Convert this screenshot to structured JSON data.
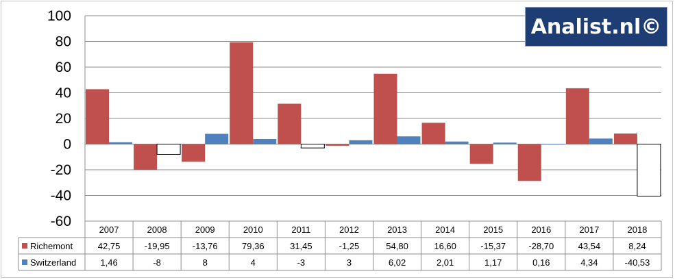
{
  "chart_data": {
    "type": "bar",
    "categories": [
      "2007",
      "2008",
      "2009",
      "2010",
      "2011",
      "2012",
      "2013",
      "2014",
      "2015",
      "2016",
      "2017",
      "2018"
    ],
    "series": [
      {
        "name": "Richemont",
        "values": [
          42.75,
          -19.95,
          -13.76,
          79.36,
          31.45,
          -1.25,
          54.8,
          16.6,
          -15.37,
          -28.7,
          43.54,
          8.24
        ],
        "labels": [
          "42,75",
          "-19,95",
          "-13,76",
          "79,36",
          "31,45",
          "-1,25",
          "54,80",
          "16,60",
          "-15,37",
          "-28,70",
          "43,54",
          "8,24"
        ],
        "color": "#c0504d"
      },
      {
        "name": "Switzerland",
        "values": [
          1.46,
          -8,
          8,
          4,
          -3,
          3,
          6.02,
          2.01,
          1.17,
          0.16,
          4.34,
          -40.53
        ],
        "labels": [
          "1,46",
          "-8",
          "8",
          "4",
          "-3",
          "3",
          "6,02",
          "2,01",
          "1,17",
          "0,16",
          "4,34",
          "-40,53"
        ],
        "color": "#4f81bd",
        "negative_fill": "#ffffff"
      }
    ],
    "ylim": [
      -60,
      100
    ],
    "yticks": [
      "100",
      "80",
      "60",
      "40",
      "20",
      "0",
      "-20",
      "-40",
      "-60"
    ],
    "grid": true,
    "legend": "data-table"
  },
  "watermark": {
    "text": "Analist.nl©",
    "color": "#1f3d75"
  }
}
